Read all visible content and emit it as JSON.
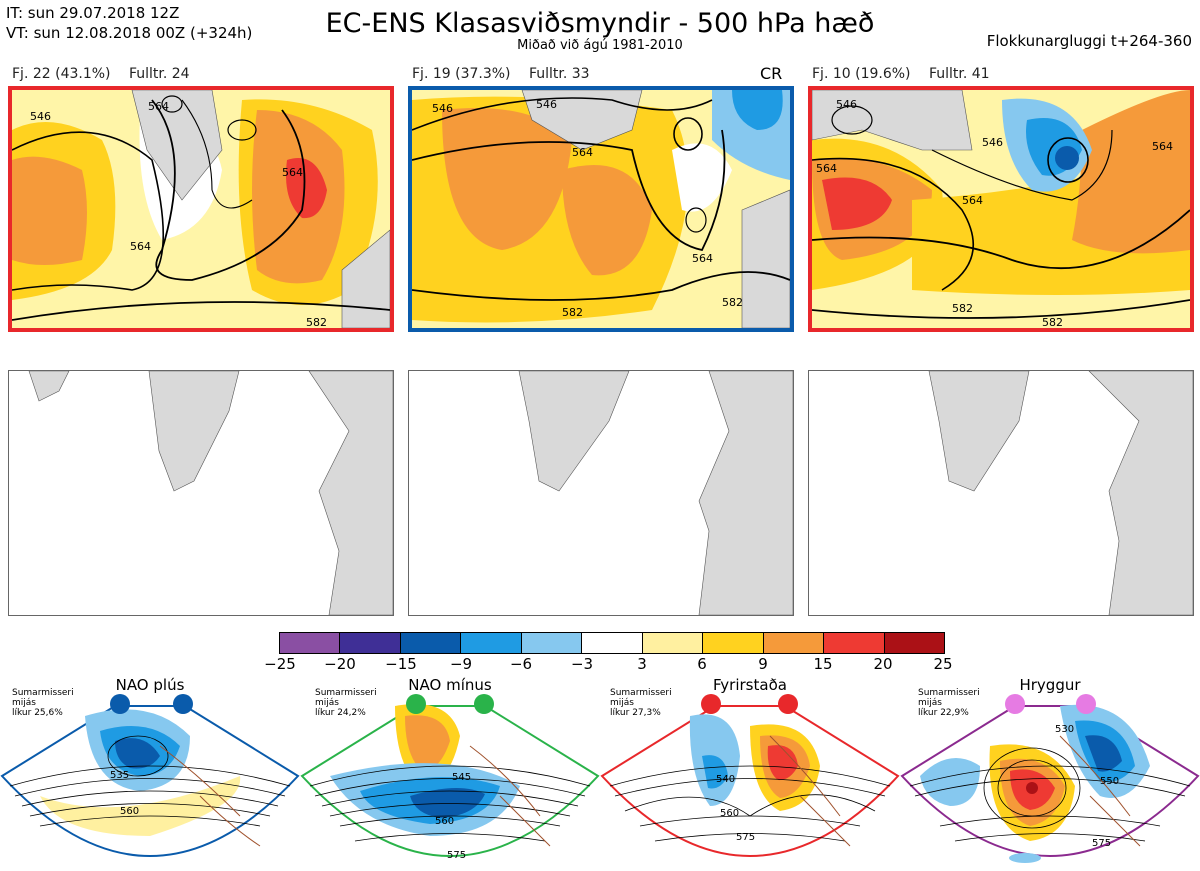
{
  "header": {
    "it_line": "IT: sun 29.07.2018 12Z",
    "vt_line": "VT: sun 12.08.2018 00Z  (+324h)",
    "title": "EC-ENS Klasasviðsmyndir - 500 hPa hæð",
    "subtitle": "Miðað við ágú 1981-2010",
    "window": "Flokkunargluggi t+264-360"
  },
  "clusters": [
    {
      "fj": "Fj. 22 (43.1%)",
      "fulltr": "Fulltr. 24",
      "border_color": "#e8282b",
      "tag": "",
      "contour_labels": [
        "546",
        "564",
        "564",
        "564",
        "582"
      ]
    },
    {
      "fj": "Fj. 19 (37.3%)",
      "fulltr": "Fulltr. 33",
      "border_color": "#0a5bab",
      "tag": "CR",
      "contour_labels": [
        "546",
        "546",
        "564",
        "564",
        "582",
        "582"
      ]
    },
    {
      "fj": "Fj. 10 (19.6%)",
      "fulltr": "Fulltr. 41",
      "border_color": "#e8282b",
      "tag": "",
      "contour_labels": [
        "546",
        "546",
        "564",
        "564",
        "582",
        "582",
        "564"
      ]
    }
  ],
  "colorbar": {
    "ticks": [
      "−25",
      "−20",
      "−15",
      "−9",
      "−6",
      "−3",
      "3",
      "6",
      "9",
      "15",
      "20",
      "25"
    ],
    "colors": [
      "#8a4fa3",
      "#3f2f96",
      "#0a5bab",
      "#1f9be3",
      "#86c8ef",
      "#ffffff",
      "#fff0a0",
      "#ffd21f",
      "#f59a3a",
      "#ee3a33",
      "#ab1116"
    ]
  },
  "regimes": [
    {
      "name": "NAO plús",
      "note_line1": "Sumarmisseri",
      "note_line2": "mijás",
      "note_line3": "líkur 25,6%",
      "dot_color": "#0a5bab",
      "border_color": "#0a5bab",
      "labels": [
        "535",
        "560"
      ]
    },
    {
      "name": "NAO mínus",
      "note_line1": "Sumarmisseri",
      "note_line2": "mijás",
      "note_line3": "líkur 24,2%",
      "dot_color": "#2ab34a",
      "border_color": "#2ab34a",
      "labels": [
        "545",
        "560",
        "575"
      ]
    },
    {
      "name": "Fyrirstaða",
      "note_line1": "Sumarmisseri",
      "note_line2": "mijás",
      "note_line3": "líkur 27,3%",
      "dot_color": "#e8282b",
      "border_color": "#e8282b",
      "labels": [
        "540",
        "560",
        "575"
      ]
    },
    {
      "name": "Hryggur",
      "note_line1": "Sumarmisseri",
      "note_line2": "mijás",
      "note_line3": "líkur 22,9%",
      "dot_color": "#e67be3",
      "border_color": "#8b2a8f",
      "labels": [
        "530",
        "550",
        "575"
      ]
    }
  ]
}
